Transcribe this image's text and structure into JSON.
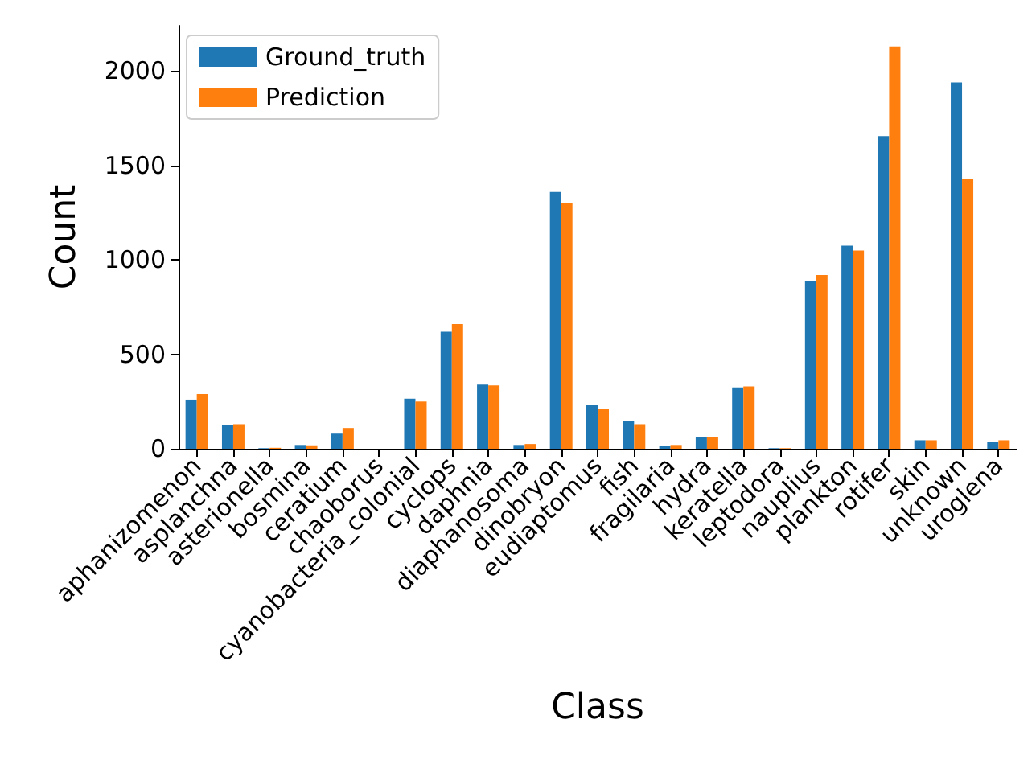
{
  "chart_data": {
    "type": "bar",
    "xlabel": "Class",
    "ylabel": "Count",
    "categories": [
      "aphanizomenon",
      "asplanchna",
      "asterionella",
      "bosmina",
      "ceratium",
      "chaoborus",
      "cyanobacteria_colonial",
      "cyclops",
      "daphnia",
      "diaphanosoma",
      "dinobryon",
      "eudiaptomus",
      "fish",
      "fragilaria",
      "hydra",
      "keratella",
      "leptodora",
      "nauplius",
      "plankton",
      "rotifer",
      "skin",
      "unknown",
      "uroglena"
    ],
    "series": [
      {
        "name": "Ground_truth",
        "color": "#1f77b4",
        "values": [
          260,
          125,
          3,
          20,
          80,
          0,
          265,
          620,
          340,
          20,
          1360,
          230,
          145,
          15,
          60,
          325,
          3,
          890,
          1075,
          1655,
          45,
          1940,
          35
        ]
      },
      {
        "name": "Prediction",
        "color": "#ff7f0e",
        "values": [
          290,
          130,
          5,
          18,
          110,
          0,
          250,
          660,
          335,
          25,
          1300,
          210,
          130,
          20,
          60,
          330,
          3,
          920,
          1050,
          2130,
          45,
          1430,
          45
        ]
      }
    ],
    "ylim": [
      0,
      2240
    ],
    "yticks": [
      0,
      500,
      1000,
      1500,
      2000
    ],
    "legend": "top left",
    "grid": false
  }
}
